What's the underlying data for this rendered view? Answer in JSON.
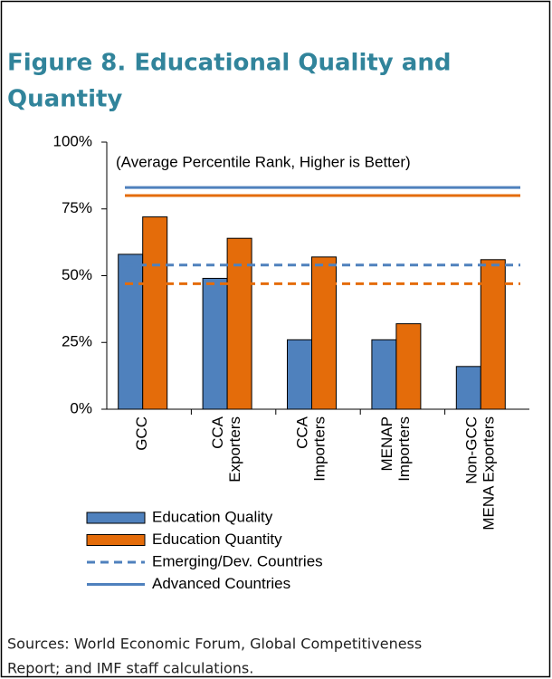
{
  "chart_data": {
    "type": "bar",
    "title_lines": [
      "Figure 8. Educational Quality and",
      "Quantity"
    ],
    "subtitle": "(Average Percentile Rank, Higher is Better)",
    "categories": [
      [
        "GCC"
      ],
      [
        "CCA",
        "Exporters"
      ],
      [
        "CCA",
        "Importers"
      ],
      [
        "MENAP",
        "Importers"
      ],
      [
        "Non-GCC",
        "MENA Exporters"
      ]
    ],
    "series": [
      {
        "name": "Education Quality",
        "color": "#4f81bd",
        "values": [
          58,
          49,
          26,
          26,
          16
        ]
      },
      {
        "name": "Education Quantity",
        "color": "#e46c0a",
        "values": [
          72,
          64,
          57,
          32,
          56
        ]
      }
    ],
    "reference_lines": [
      {
        "name": "Emerging/Dev. Countries",
        "style": "dashed",
        "values": [
          54,
          47
        ]
      },
      {
        "name": "Advanced Countries",
        "style": "solid",
        "values": [
          83,
          80
        ]
      }
    ],
    "ylim": [
      0,
      100
    ],
    "yticks": [
      {
        "value": 0,
        "label": "0%"
      },
      {
        "value": 25,
        "label": "25%"
      },
      {
        "value": 50,
        "label": "50%"
      },
      {
        "value": 75,
        "label": "75%"
      },
      {
        "value": 100,
        "label": "100%"
      }
    ],
    "source_lines": [
      "Sources: World Economic Forum, Global Competitiveness",
      "Report; and IMF staff calculations."
    ]
  }
}
